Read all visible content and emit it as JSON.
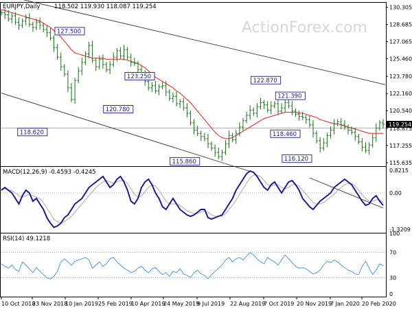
{
  "chart_data": {
    "type": "line",
    "watermark": "ActionForex.com",
    "x_labels": [
      "10 Oct 2018",
      "23 Nov 2018",
      "10 Jan 2019",
      "25 Feb 2019",
      "10 Apr 2019",
      "24 May 2019",
      "9 Jul 2019",
      "22 Aug 2019",
      "7 Oct 2019",
      "20 Nov 2019",
      "7 Jan 2020",
      "20 Feb 2020"
    ],
    "price": {
      "title": "EURJPY,Daily",
      "ohlc": "118.502 119.930 118.087 119.254",
      "last": "119.254",
      "y_ticks": [
        "130.305",
        "128.685",
        "127.065",
        "125.460",
        "123.780",
        "122.160",
        "120.540",
        "118.875",
        "117.255",
        "115.635"
      ],
      "y_range": [
        115.3,
        130.8
      ],
      "annotations": [
        {
          "text": "127.500",
          "at": 19.5,
          "value": 127.5
        },
        {
          "text": "118.620",
          "at": 13.5,
          "value": 118.62
        },
        {
          "text": "123.250",
          "at": 39.5,
          "value": 123.25
        },
        {
          "text": "120.780",
          "at": 38.0,
          "value": 120.78
        },
        {
          "text": "115.860",
          "at": 57.0,
          "value": 115.86
        },
        {
          "text": "122.870",
          "at": 75.5,
          "value": 122.87
        },
        {
          "text": "121.390",
          "at": 82.5,
          "value": 121.39
        },
        {
          "text": "118.460",
          "at": 84.5,
          "value": 118.46
        },
        {
          "text": "116.120",
          "at": 89.0,
          "value": 116.12
        }
      ],
      "close": [
        129.8,
        129.6,
        129.2,
        129.5,
        128.9,
        128.6,
        129.0,
        129.3,
        128.7,
        128.4,
        128.9,
        128.6,
        128.2,
        127.9,
        127.4,
        126.5,
        125.6,
        124.7,
        124.0,
        122.7,
        121.6,
        123.4,
        124.3,
        125.1,
        125.9,
        126.7,
        125.3,
        124.7,
        125.4,
        124.9,
        124.4,
        124.9,
        125.6,
        126.2,
        125.7,
        126.3,
        125.6,
        125.1,
        125.0,
        124.4,
        123.9,
        123.3,
        122.7,
        122.9,
        122.4,
        122.8,
        122.9,
        122.3,
        121.7,
        121.9,
        121.2,
        121.4,
        120.8,
        120.3,
        119.4,
        118.7,
        118.4,
        118.1,
        117.9,
        117.4,
        117.0,
        116.6,
        116.2,
        116.6,
        117.4,
        118.2,
        117.8,
        118.4,
        119.0,
        119.6,
        120.1,
        120.6,
        120.3,
        120.9,
        121.3,
        121.1,
        120.6,
        121.0,
        121.2,
        120.5,
        120.8,
        121.3,
        121.0,
        120.5,
        120.2,
        120.0,
        119.9,
        119.7,
        119.2,
        118.4,
        117.7,
        117.0,
        117.5,
        118.2,
        118.7,
        119.3,
        119.5,
        119.2,
        119.0,
        118.7,
        118.5,
        118.1,
        117.6,
        117.1,
        116.8,
        117.3,
        118.0,
        118.9,
        119.4,
        119.25
      ],
      "ma": [
        130.1,
        130.0,
        129.9,
        129.8,
        129.7,
        129.6,
        129.5,
        129.4,
        129.3,
        129.2,
        129.1,
        129.0,
        128.8,
        128.6,
        128.4,
        128.1,
        127.8,
        127.5,
        127.1,
        126.7,
        126.3,
        126.0,
        125.9,
        125.8,
        125.7,
        125.6,
        125.5,
        125.5,
        125.5,
        125.5,
        125.4,
        125.4,
        125.4,
        125.4,
        125.4,
        125.4,
        125.3,
        125.2,
        125.1,
        125.0,
        124.8,
        124.6,
        124.3,
        124.0,
        123.7,
        123.5,
        123.3,
        123.1,
        122.9,
        122.7,
        122.4,
        122.2,
        121.9,
        121.6,
        121.3,
        120.9,
        120.5,
        120.1,
        119.7,
        119.3,
        118.9,
        118.5,
        118.2,
        118.0,
        117.9,
        117.9,
        118.0,
        118.2,
        118.4,
        118.6,
        118.8,
        119.0,
        119.2,
        119.4,
        119.6,
        119.8,
        119.9,
        120.0,
        120.1,
        120.2,
        120.3,
        120.4,
        120.4,
        120.4,
        120.4,
        120.3,
        120.3,
        120.2,
        120.1,
        120.0,
        119.9,
        119.7,
        119.6,
        119.5,
        119.4,
        119.3,
        119.3,
        119.2,
        119.1,
        119.0,
        118.9,
        118.8,
        118.7,
        118.6,
        118.5,
        118.4,
        118.4,
        118.4,
        118.4,
        118.4
      ],
      "channel_upper": {
        "from": [
          0,
          131.5
        ],
        "to": [
          109,
          123.0
        ]
      },
      "channel_lower": {
        "from": [
          0,
          122.2
        ],
        "to": [
          72,
          114.7
        ]
      },
      "horizontal": 118.9
    },
    "macd": {
      "title": "MACD(12,26,9) -0.4593 -0.4245",
      "y_ticks": [
        "0.8215",
        "0.00",
        "-1.3209"
      ],
      "y_range": [
        -1.45,
        0.95
      ],
      "macd": [
        0.1,
        0.2,
        0.1,
        0.0,
        -0.2,
        -0.4,
        -0.1,
        0.1,
        0.0,
        -0.3,
        -0.2,
        -0.4,
        -0.6,
        -0.9,
        -1.1,
        -1.25,
        -1.2,
        -1.1,
        -0.9,
        -0.8,
        -0.6,
        -0.4,
        -0.3,
        -0.2,
        0.0,
        0.2,
        0.3,
        0.4,
        0.5,
        0.6,
        0.4,
        0.2,
        0.3,
        0.5,
        0.6,
        0.4,
        0.1,
        -0.3,
        -0.4,
        -0.2,
        0.2,
        0.4,
        0.5,
        0.3,
        0.0,
        -0.2,
        -0.5,
        -0.6,
        -0.4,
        -0.2,
        -0.4,
        -0.6,
        -0.7,
        -0.8,
        -0.85,
        -0.8,
        -0.7,
        -0.6,
        -0.6,
        -0.9,
        -0.95,
        -0.9,
        -0.85,
        -0.8,
        -0.6,
        -0.4,
        -0.2,
        0.1,
        0.3,
        0.5,
        0.7,
        0.8,
        0.75,
        0.6,
        0.4,
        0.2,
        0.1,
        0.3,
        0.4,
        0.2,
        0.0,
        0.2,
        0.4,
        0.45,
        0.3,
        0.1,
        -0.2,
        -0.35,
        -0.5,
        -0.6,
        -0.45,
        -0.3,
        -0.2,
        -0.1,
        0.0,
        0.2,
        0.3,
        0.4,
        0.5,
        0.4,
        0.3,
        0.1,
        -0.1,
        -0.3,
        -0.45,
        -0.4,
        -0.2,
        -0.1,
        -0.3,
        -0.45
      ],
      "signal": [
        0.15,
        0.15,
        0.12,
        0.08,
        0.0,
        -0.1,
        -0.15,
        -0.1,
        -0.05,
        -0.1,
        -0.15,
        -0.22,
        -0.35,
        -0.55,
        -0.75,
        -0.95,
        -1.05,
        -1.1,
        -1.05,
        -0.95,
        -0.85,
        -0.7,
        -0.55,
        -0.4,
        -0.25,
        -0.1,
        0.05,
        0.2,
        0.3,
        0.4,
        0.45,
        0.4,
        0.35,
        0.4,
        0.45,
        0.45,
        0.35,
        0.15,
        -0.05,
        -0.15,
        -0.1,
        0.05,
        0.2,
        0.3,
        0.25,
        0.1,
        -0.1,
        -0.3,
        -0.4,
        -0.4,
        -0.4,
        -0.45,
        -0.55,
        -0.65,
        -0.7,
        -0.75,
        -0.75,
        -0.7,
        -0.65,
        -0.7,
        -0.8,
        -0.85,
        -0.85,
        -0.85,
        -0.75,
        -0.6,
        -0.45,
        -0.25,
        -0.05,
        0.15,
        0.35,
        0.55,
        0.65,
        0.65,
        0.6,
        0.45,
        0.3,
        0.25,
        0.3,
        0.3,
        0.2,
        0.15,
        0.2,
        0.3,
        0.3,
        0.25,
        0.1,
        -0.05,
        -0.2,
        -0.35,
        -0.4,
        -0.4,
        -0.35,
        -0.25,
        -0.15,
        -0.05,
        0.1,
        0.2,
        0.3,
        0.35,
        0.35,
        0.25,
        0.1,
        -0.05,
        -0.2,
        -0.3,
        -0.3,
        -0.25,
        -0.25,
        -0.35
      ],
      "trend": {
        "from": [
          88,
          0.55
        ],
        "to": [
          109,
          -0.55
        ]
      }
    },
    "rsi": {
      "title": "RSI(14) 49.1218",
      "y_ticks": [
        "100",
        "70",
        "30",
        "0"
      ],
      "y_range": [
        0,
        100
      ],
      "values": [
        52,
        48,
        45,
        50,
        43,
        40,
        55,
        50,
        44,
        38,
        46,
        40,
        35,
        30,
        28,
        32,
        40,
        55,
        60,
        55,
        50,
        56,
        58,
        60,
        62,
        58,
        45,
        50,
        55,
        48,
        52,
        60,
        62,
        55,
        50,
        45,
        42,
        38,
        40,
        45,
        48,
        42,
        38,
        44,
        46,
        40,
        35,
        38,
        32,
        40,
        38,
        44,
        36,
        34,
        30,
        38,
        42,
        36,
        34,
        28,
        35,
        40,
        45,
        50,
        58,
        62,
        55,
        60,
        62,
        58,
        64,
        70,
        66,
        60,
        55,
        52,
        62,
        58,
        55,
        50,
        58,
        66,
        60,
        54,
        48,
        45,
        46,
        44,
        40,
        36,
        38,
        42,
        50,
        56,
        54,
        58,
        55,
        50,
        46,
        42,
        40,
        36,
        35,
        48,
        56,
        45,
        35,
        42,
        52,
        49
      ]
    }
  }
}
